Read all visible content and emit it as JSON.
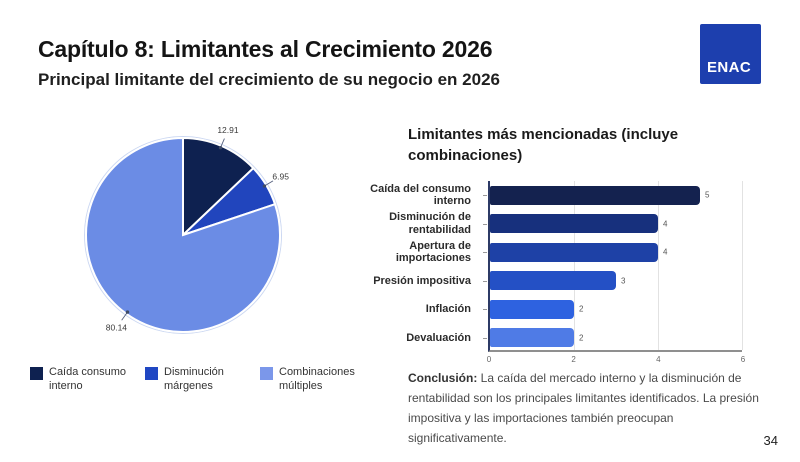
{
  "slide": {
    "title": "Capítulo 8: Limitantes al Crecimiento 2026",
    "subtitle": "Principal limitante del crecimiento de su negocio en 2026",
    "logo_text": "ENAC",
    "logo_color": "#1d3fae",
    "page_number": "34"
  },
  "pie_legend": [
    {
      "label": "Caída consumo interno",
      "color": "#0e2150"
    },
    {
      "label": "Disminución márgenes",
      "color": "#2047c3"
    },
    {
      "label": "Combinaciones múltiples",
      "color": "#7b97ea"
    }
  ],
  "conclusion": {
    "lead": "Conclusión:",
    "text": " La caída del mercado interno y la disminución de rentabilidad son los principales limitantes identificados. La presión impositiva y las importaciones también preocupan significativamente."
  },
  "chart_data": [
    {
      "type": "pie",
      "labels": [
        "Caída consumo interno",
        "Disminución márgenes",
        "Combinaciones múltiples"
      ],
      "values": [
        12.91,
        6.95,
        80.14
      ],
      "point_labels": [
        "12.91",
        "6.95",
        "80.14"
      ],
      "colors": [
        "#0e2150",
        "#2145bd",
        "#6b8ce5"
      ],
      "start_angle_deg": 0,
      "direction": "clockwise",
      "legend_position": "bottom"
    },
    {
      "type": "bar",
      "orientation": "horizontal",
      "title": "Limitantes más mencionadas (incluye combinaciones)",
      "categories": [
        "Caída del consumo interno",
        "Disminución de rentabilidad",
        "Apertura de importaciones",
        "Presión impositiva",
        "Inflación",
        "Devaluación"
      ],
      "values": [
        5,
        4,
        4,
        3,
        2,
        2
      ],
      "bar_colors": [
        "#14224f",
        "#17307d",
        "#1e41a6",
        "#2450c5",
        "#2e62e0",
        "#4f7be6"
      ],
      "xlim": [
        0,
        6
      ],
      "xticks": [
        0,
        2,
        4,
        6
      ],
      "grid": true,
      "xlabel": "",
      "ylabel": ""
    }
  ]
}
